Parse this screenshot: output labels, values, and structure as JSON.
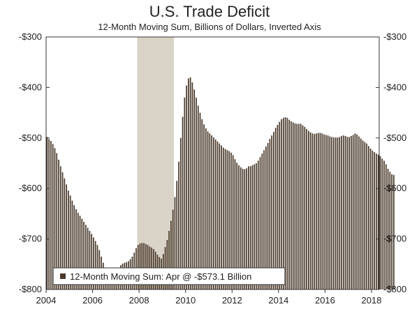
{
  "chart_data": {
    "type": "bar",
    "title": "U.S. Trade Deficit",
    "subtitle": "12-Month Moving Sum, Billions of Dollars, Inverted Axis",
    "xlabel": "",
    "ylabel": "",
    "y_inverted": true,
    "ylim": [
      -300,
      -800
    ],
    "y_ticks": [
      -800,
      -700,
      -600,
      -500,
      -400,
      -300
    ],
    "y_tick_labels": [
      "-$800",
      "-$700",
      "-$600",
      "-$500",
      "-$400",
      "-$300"
    ],
    "x_range": [
      2004.0,
      2018.33
    ],
    "x_ticks": [
      2004,
      2006,
      2008,
      2010,
      2012,
      2014,
      2016,
      2018
    ],
    "x_tick_labels": [
      "2004",
      "2006",
      "2008",
      "2010",
      "2012",
      "2014",
      "2016",
      "2018"
    ],
    "recession_shading": {
      "start": 2007.92,
      "end": 2009.5
    },
    "series": [
      {
        "name": "12-Month Moving Sum: Apr @ -$573.1 Billion",
        "color": "#4a3a2c",
        "start": "2004-01",
        "frequency": "monthly",
        "values": [
          -498,
          -502,
          -506,
          -512,
          -520,
          -530,
          -543,
          -556,
          -568,
          -580,
          -592,
          -604,
          -614,
          -624,
          -633,
          -641,
          -648,
          -654,
          -660,
          -666,
          -672,
          -678,
          -684,
          -690,
          -697,
          -704,
          -712,
          -722,
          -735,
          -747,
          -758,
          -767,
          -775,
          -778,
          -777,
          -770,
          -762,
          -758,
          -752,
          -749,
          -747,
          -746,
          -744,
          -740,
          -735,
          -727,
          -718,
          -712,
          -709,
          -708,
          -708,
          -710,
          -712,
          -715,
          -717,
          -720,
          -725,
          -731,
          -736,
          -739,
          -730,
          -716,
          -702,
          -684,
          -664,
          -642,
          -617,
          -585,
          -547,
          -500,
          -458,
          -420,
          -396,
          -382,
          -380,
          -390,
          -404,
          -420,
          -436,
          -450,
          -463,
          -473,
          -481,
          -487,
          -491,
          -495,
          -499,
          -503,
          -507,
          -511,
          -515,
          -519,
          -522,
          -524,
          -526,
          -529,
          -534,
          -542,
          -549,
          -554,
          -558,
          -561,
          -562,
          -560,
          -556,
          -556,
          -554,
          -552,
          -550,
          -545,
          -538,
          -531,
          -524,
          -517,
          -510,
          -502,
          -495,
          -488,
          -480,
          -474,
          -468,
          -463,
          -460,
          -459,
          -460,
          -464,
          -467,
          -469,
          -471,
          -472,
          -472,
          -472,
          -475,
          -478,
          -482,
          -486,
          -489,
          -491,
          -492,
          -491,
          -490,
          -490,
          -491,
          -493,
          -494,
          -495,
          -497,
          -498,
          -499,
          -499,
          -499,
          -498,
          -496,
          -495,
          -496,
          -498,
          -498,
          -496,
          -494,
          -491,
          -493,
          -497,
          -501,
          -505,
          -508,
          -511,
          -516,
          -521,
          -525,
          -528,
          -531,
          -533,
          -536,
          -541,
          -545,
          -552,
          -561,
          -567,
          -572,
          -573
        ]
      }
    ],
    "legend": {
      "label": "12-Month Moving Sum: Apr @ -$573.1 Billion",
      "position": "bottom-left"
    }
  }
}
